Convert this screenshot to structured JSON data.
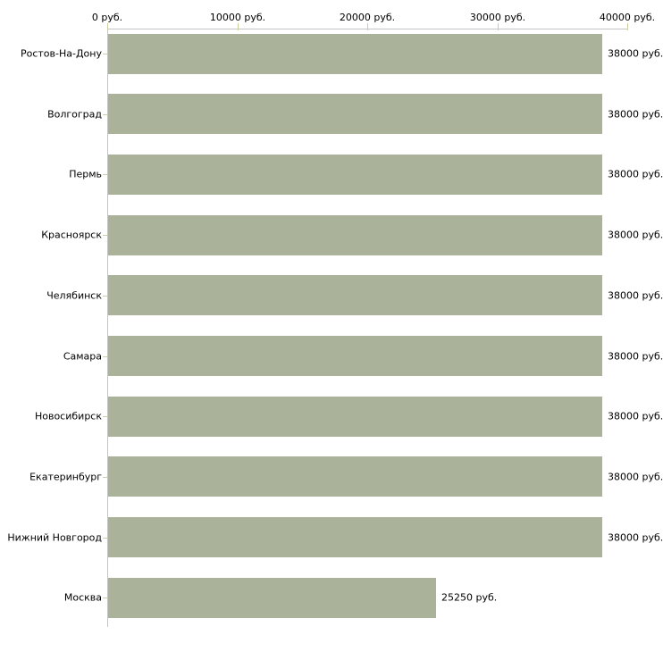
{
  "chart_data": {
    "type": "bar",
    "orientation": "horizontal",
    "categories": [
      "Ростов-На-Дону",
      "Волгоград",
      "Пермь",
      "Красноярск",
      "Челябинск",
      "Самара",
      "Новосибирск",
      "Екатеринбург",
      "Нижний Новгород",
      "Москва"
    ],
    "values": [
      38000,
      38000,
      38000,
      38000,
      38000,
      38000,
      38000,
      38000,
      38000,
      25250
    ],
    "value_labels": [
      "38000 руб.",
      "38000 руб.",
      "38000 руб.",
      "38000 руб.",
      "38000 руб.",
      "38000 руб.",
      "38000 руб.",
      "38000 руб.",
      "38000 руб.",
      "25250 руб."
    ],
    "unit": "руб.",
    "xlim": [
      0,
      40000
    ],
    "x_ticks": [
      0,
      10000,
      20000,
      30000,
      40000
    ],
    "x_tick_labels": [
      "0 руб.",
      "10000 руб.",
      "20000 руб.",
      "30000 руб.",
      "40000 руб."
    ],
    "grid": false,
    "legend": false,
    "axis_position": "top",
    "colors": {
      "bar": "#abb29a",
      "axis": "#c4c4c4",
      "tick": "#cdcfa0",
      "text": "#000000",
      "background": "#ffffff"
    }
  }
}
